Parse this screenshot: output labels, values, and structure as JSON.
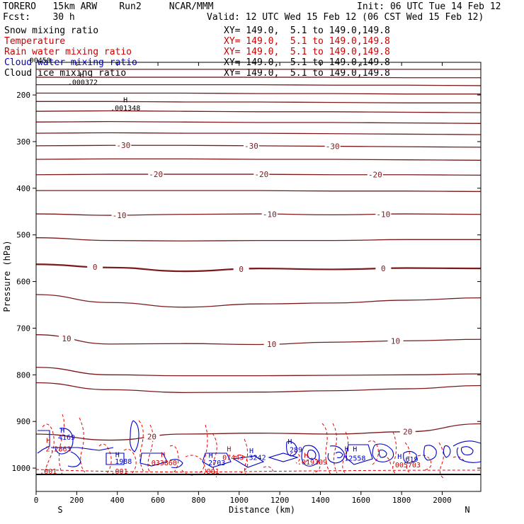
{
  "header": {
    "model": "TORERO   15km ARW    Run2     NCAR/MMM",
    "init": "Init: 06 UTC Tue 14 Feb 12",
    "fcst": "Fcst:    30 h",
    "valid": "Valid: 12 UTC Wed 15 Feb 12 (06 CST Wed 15 Feb 12)"
  },
  "legend": [
    {
      "label": "Snow mixing ratio",
      "xy": "XY= 149.0,  5.1 to 149.0,149.8",
      "color": "#000000"
    },
    {
      "label": "Temperature",
      "xy": "XY= 149.0,  5.1 to 149.0,149.8",
      "color": "#cc0000"
    },
    {
      "label": "Rain water mixing ratio",
      "xy": "XY= 149.0,  5.1 to 149.0,149.8",
      "color": "#cc0000"
    },
    {
      "label": "Cloud water mixing ratio",
      "xy": "XY= 149.0,  5.1 to 149.0,149.8",
      "color": "#0000cc"
    },
    {
      "label": "Cloud ice mixing ratio",
      "xy": "XY= 149.0,  5.1 to 149.0,149.8",
      "color": "#000000"
    }
  ],
  "colors": {
    "temperature": "#7a1a1a",
    "rain": "#ee0000",
    "cloud_water": "#0000cc",
    "axis": "#000000"
  },
  "chart_data": {
    "type": "line",
    "title": "",
    "xlabel": "Distance (km)",
    "ylabel": "Pressure (hPa)",
    "xlim": [
      0,
      2190
    ],
    "ylim": [
      1050,
      130
    ],
    "x_ticks": [
      0,
      200,
      400,
      600,
      800,
      1000,
      1200,
      1400,
      1600,
      1800,
      2000
    ],
    "y_ticks": [
      200,
      300,
      400,
      500,
      600,
      700,
      800,
      900,
      1000
    ],
    "x_end_labels": {
      "left": "S",
      "right": "N"
    },
    "temperature_contours": [
      {
        "p": [
          145,
          145,
          145,
          145,
          145,
          145,
          145
        ]
      },
      {
        "p": [
          162,
          162,
          162,
          162,
          162,
          163,
          163
        ]
      },
      {
        "p": [
          178,
          178,
          178,
          178,
          179,
          179,
          180
        ]
      },
      {
        "p": [
          196,
          196,
          196,
          197,
          197,
          198,
          198
        ]
      },
      {
        "p": [
          214,
          214,
          215,
          215,
          216,
          217,
          217
        ]
      },
      {
        "p": [
          235,
          234,
          235,
          236,
          236,
          237,
          238
        ]
      },
      {
        "p": [
          258,
          257,
          258,
          259,
          259,
          260,
          261
        ]
      },
      {
        "p": [
          282,
          281,
          282,
          282,
          283,
          284,
          285
        ]
      },
      {
        "label": "-30",
        "label_x": [
          430,
          1060,
          1460
        ],
        "p": [
          309,
          308,
          308,
          309,
          310,
          311,
          312
        ]
      },
      {
        "p": [
          338,
          337,
          337,
          338,
          338,
          339,
          340
        ]
      },
      {
        "label": "-20",
        "label_x": [
          590,
          1110,
          1670
        ],
        "p": [
          371,
          370,
          370,
          370,
          371,
          371,
          372
        ]
      },
      {
        "p": [
          405,
          405,
          405,
          405,
          406,
          406,
          407
        ]
      },
      {
        "label": "-10",
        "label_x": [
          410,
          1150,
          1710
        ],
        "p": [
          455,
          458,
          456,
          455,
          457,
          455,
          456
        ]
      },
      {
        "p": [
          506,
          512,
          513,
          512,
          512,
          510,
          510
        ]
      },
      {
        "label": "0",
        "label_x": [
          290,
          1010,
          1710
        ],
        "bold": true,
        "p": [
          563,
          570,
          578,
          572,
          574,
          571,
          572
        ]
      },
      {
        "p": [
          628,
          645,
          655,
          648,
          646,
          640,
          635
        ]
      },
      {
        "label": "10",
        "label_x": [
          150,
          1160,
          1770
        ],
        "p": [
          714,
          734,
          733,
          735,
          730,
          727,
          724
        ]
      },
      {
        "p": [
          784,
          800,
          802,
          802,
          801,
          800,
          798
        ]
      },
      {
        "p": [
          817,
          832,
          838,
          837,
          834,
          830,
          823
        ]
      },
      {
        "label": "20",
        "label_x": [
          570,
          1830
        ],
        "p": [
          927,
          940,
          927,
          925,
          927,
          922,
          905
        ]
      }
    ],
    "max_labels": [
      {
        "x": 230,
        "p": 172,
        "text": ".000372"
      },
      {
        "x": 440,
        "p": 227,
        "text": ".001348"
      },
      {
        "x": 20,
        "p": 125,
        "text": "00450"
      },
      {
        "x": 150,
        "p": 933,
        "text": "4169",
        "series": "cloud_water"
      },
      {
        "x": 110,
        "p": 958,
        "text": "2.2863",
        "series": "rain"
      },
      {
        "x": 430,
        "p": 985,
        "text": "1988",
        "series": "cloud_water"
      },
      {
        "x": 620,
        "p": 988,
        "text": ".033860",
        "series": "rain"
      },
      {
        "x": 890,
        "p": 988,
        "text": "2703",
        "series": "cloud_water"
      },
      {
        "x": 970,
        "p": 976,
        "text": "07443",
        "series": "rain"
      },
      {
        "x": 1090,
        "p": 976,
        "text": "3242",
        "series": "cloud_water"
      },
      {
        "x": 1280,
        "p": 960,
        "text": "289",
        "series": "cloud_water"
      },
      {
        "x": 1360,
        "p": 986,
        "text": ".019309",
        "series": "rain"
      },
      {
        "x": 1560,
        "p": 978,
        "text": ".12558",
        "series": "cloud_water"
      },
      {
        "x": 1850,
        "p": 980,
        "text": "619",
        "series": "cloud_water"
      },
      {
        "x": 1820,
        "p": 992,
        "text": ".005703",
        "series": "rain"
      },
      {
        "x": 60,
        "p": 1006,
        "text": ".001",
        "series": "rain"
      },
      {
        "x": 410,
        "p": 1006,
        "text": ".001",
        "series": "rain"
      },
      {
        "x": 860,
        "p": 1006,
        "text": ".001",
        "series": "rain"
      }
    ],
    "h_markers": [
      {
        "x": 225,
        "p": 156,
        "series": "snow"
      },
      {
        "x": 440,
        "p": 210,
        "series": "snow"
      },
      {
        "x": 130,
        "p": 918,
        "series": "cloud_water"
      },
      {
        "x": 60,
        "p": 940,
        "series": "rain"
      },
      {
        "x": 400,
        "p": 970,
        "series": "cloud_water"
      },
      {
        "x": 625,
        "p": 970,
        "series": "rain"
      },
      {
        "x": 860,
        "p": 972,
        "series": "cloud_water"
      },
      {
        "x": 950,
        "p": 958,
        "series": "rain"
      },
      {
        "x": 1060,
        "p": 962,
        "series": "cloud_water"
      },
      {
        "x": 1250,
        "p": 942,
        "series": "cloud_water"
      },
      {
        "x": 1330,
        "p": 972,
        "series": "rain"
      },
      {
        "x": 1530,
        "p": 958,
        "series": "cloud_water"
      },
      {
        "x": 1570,
        "p": 958,
        "series": "cloud_water"
      },
      {
        "x": 1790,
        "p": 974,
        "series": "cloud_water"
      }
    ]
  }
}
